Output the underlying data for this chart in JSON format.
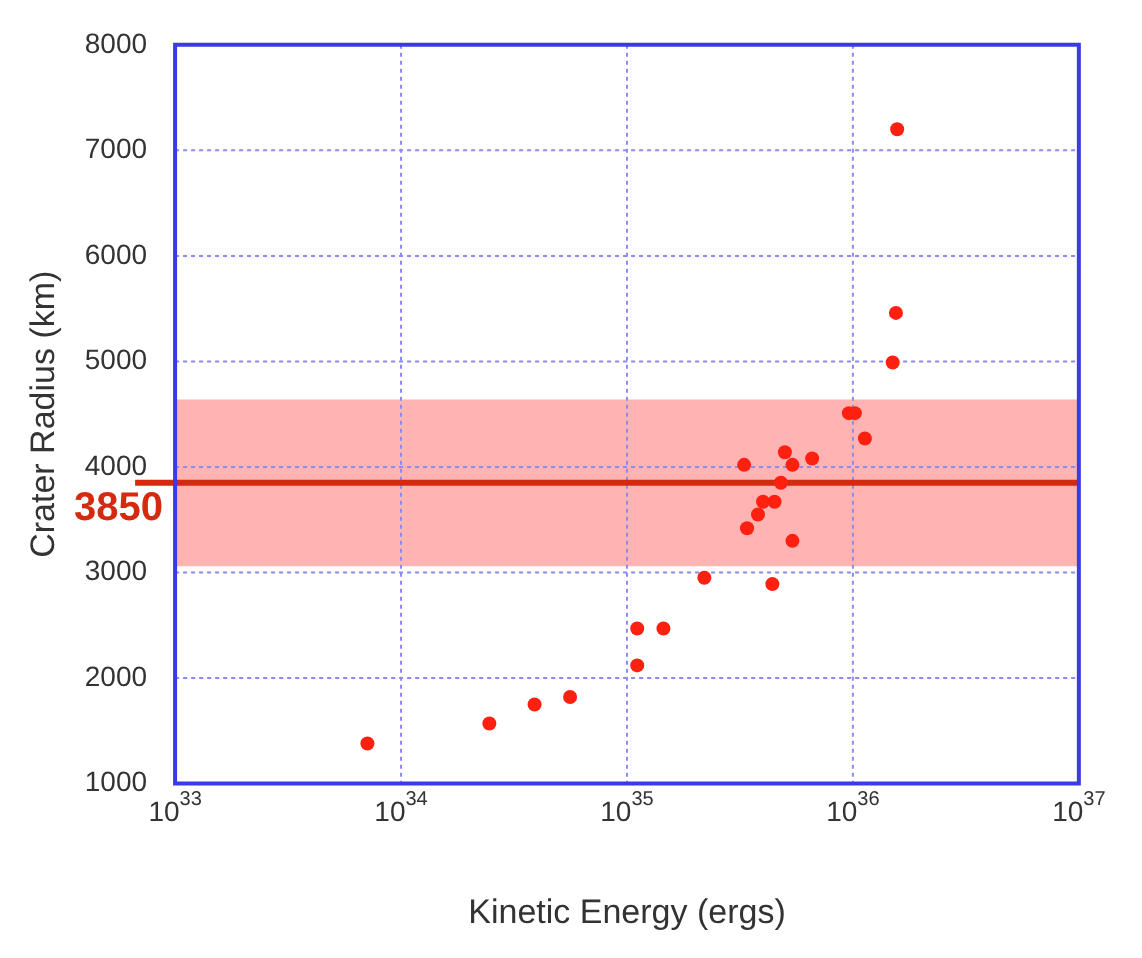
{
  "chart_data": {
    "type": "scatter",
    "xlabel": "Kinetic Energy (ergs)",
    "ylabel": "Crater Radius (km)",
    "x": [
      7.1e+33,
      2.46e+34,
      3.9e+34,
      5.6e+34,
      1.11e+35,
      1.11e+35,
      1.45e+35,
      2.2e+35,
      4.4e+35,
      3.4e+35,
      5.4e+35,
      3.8e+35,
      4e+35,
      4.5e+35,
      4.8e+35,
      3.3e+35,
      5.4e+35,
      5e+35,
      6.6e+35,
      9.6e+35,
      1.02e+36,
      1.13e+36,
      1.5e+36,
      1.55e+36,
      1.57e+36
    ],
    "series": [
      {
        "color": "#ff2010",
        "values": [
          1380,
          1570,
          1750,
          1820,
          2120,
          2470,
          2470,
          2950,
          2890,
          3420,
          3300,
          3550,
          3670,
          3670,
          3850,
          4020,
          4020,
          4140,
          4080,
          4510,
          4510,
          4270,
          4990,
          5460,
          7200
        ]
      }
    ],
    "log": "x",
    "xlim": [
      1e+33,
      1e+37
    ],
    "xticks": [
      {
        "value": 1e+33,
        "label": "10$^{33}$"
      },
      {
        "value": 1e+34,
        "label": "10$^{34}$"
      },
      {
        "value": 1e+35,
        "label": "10$^{35}$"
      },
      {
        "value": 1e+36,
        "label": "10$^{36}$"
      },
      {
        "value": 1e+37,
        "label": "10$^{37}$"
      }
    ],
    "ylim": [
      1000,
      8000
    ],
    "yticks": [
      1000,
      2000,
      3000,
      4000,
      5000,
      6000,
      7000,
      8000
    ],
    "ref_lines": [
      {
        "axis": "y",
        "value": 3850,
        "label": "3850",
        "color": "#d42a10"
      }
    ],
    "bands": [
      {
        "axis": "y",
        "from": 3060,
        "to": 4640,
        "color": "#ffb3b3"
      }
    ],
    "grid": true,
    "marker": "circle"
  }
}
